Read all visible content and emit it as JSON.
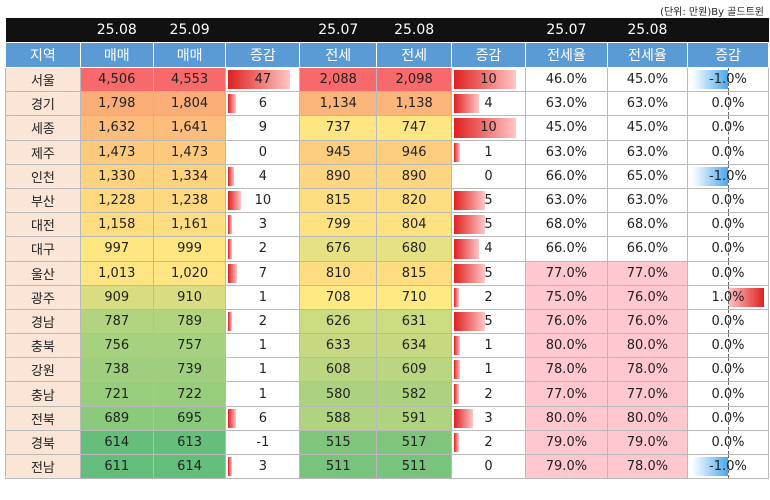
{
  "unit_note": "(단위: 만원)By 골드트윈",
  "periods": [
    "25.08",
    "25.09",
    "",
    "25.07",
    "25.08",
    "",
    "25.07",
    "25.08",
    ""
  ],
  "columns": [
    "지역",
    "매매",
    "매매",
    "증감",
    "전세",
    "전세",
    "증감",
    "전세율",
    "전세율",
    "증감"
  ],
  "rows": [
    {
      "region": "서울",
      "sale1": "4,506",
      "sale2": "4,553",
      "sale_chg": "47",
      "sale_bar": 1.0,
      "jeonse1": "2,088",
      "jeonse2": "2,098",
      "jeonse_chg": "10",
      "jeonse_bar": 1.0,
      "rate1": "46.0%",
      "rate2": "45.0%",
      "rate_chg": "-1.0%",
      "rate_dir": -1,
      "sale_color": "#f8696b",
      "jeonse_color": "#f8696b",
      "rate_pink": false
    },
    {
      "region": "경기",
      "sale1": "1,798",
      "sale2": "1,804",
      "sale_chg": "6",
      "sale_bar": 0.13,
      "jeonse1": "1,134",
      "jeonse2": "1,138",
      "jeonse_chg": "4",
      "jeonse_bar": 0.4,
      "rate1": "63.0%",
      "rate2": "63.0%",
      "rate_chg": "0.0%",
      "rate_dir": 0,
      "sale_color": "#fbad78",
      "jeonse_color": "#fbb47a",
      "rate_pink": false
    },
    {
      "region": "세종",
      "sale1": "1,632",
      "sale2": "1,641",
      "sale_chg": "9",
      "sale_bar": 0.0,
      "jeonse1": "737",
      "jeonse2": "747",
      "jeonse_chg": "10",
      "jeonse_bar": 1.0,
      "rate1": "45.0%",
      "rate2": "45.0%",
      "rate_chg": "0.0%",
      "rate_dir": 0,
      "sale_color": "#fcbc7b",
      "jeonse_color": "#fee683",
      "rate_pink": false
    },
    {
      "region": "제주",
      "sale1": "1,473",
      "sale2": "1,473",
      "sale_chg": "0",
      "sale_bar": 0.0,
      "jeonse1": "945",
      "jeonse2": "946",
      "jeonse_chg": "1",
      "jeonse_bar": 0.1,
      "rate1": "63.0%",
      "rate2": "63.0%",
      "rate_chg": "0.0%",
      "rate_dir": 0,
      "sale_color": "#fdc97d",
      "jeonse_color": "#fdcd7e",
      "rate_pink": false
    },
    {
      "region": "인천",
      "sale1": "1,330",
      "sale2": "1,334",
      "sale_chg": "4",
      "sale_bar": 0.09,
      "jeonse1": "890",
      "jeonse2": "890",
      "jeonse_chg": "0",
      "jeonse_bar": 0.0,
      "rate1": "66.0%",
      "rate2": "65.0%",
      "rate_chg": "-1.0%",
      "rate_dir": -1,
      "sale_color": "#fed380",
      "jeonse_color": "#fed580",
      "rate_pink": false
    },
    {
      "region": "부산",
      "sale1": "1,228",
      "sale2": "1,238",
      "sale_chg": "10",
      "sale_bar": 0.21,
      "jeonse1": "815",
      "jeonse2": "820",
      "jeonse_chg": "5",
      "jeonse_bar": 0.5,
      "rate1": "63.0%",
      "rate2": "63.0%",
      "rate_chg": "0.0%",
      "rate_dir": 0,
      "sale_color": "#fed980",
      "jeonse_color": "#fede81",
      "rate_pink": false
    },
    {
      "region": "대전",
      "sale1": "1,158",
      "sale2": "1,161",
      "sale_chg": "3",
      "sale_bar": 0.07,
      "jeonse1": "799",
      "jeonse2": "804",
      "jeonse_chg": "5",
      "jeonse_bar": 0.5,
      "rate1": "68.0%",
      "rate2": "68.0%",
      "rate_chg": "0.0%",
      "rate_dir": 0,
      "sale_color": "#fedd81",
      "jeonse_color": "#fee282",
      "rate_pink": false
    },
    {
      "region": "대구",
      "sale1": "997",
      "sale2": "999",
      "sale_chg": "2",
      "sale_bar": 0.05,
      "jeonse1": "676",
      "jeonse2": "680",
      "jeonse_chg": "4",
      "jeonse_bar": 0.4,
      "rate1": "66.0%",
      "rate2": "66.0%",
      "rate_chg": "0.0%",
      "rate_dir": 0,
      "sale_color": "#fee683",
      "jeonse_color": "#e6e182",
      "rate_pink": false
    },
    {
      "region": "울산",
      "sale1": "1,013",
      "sale2": "1,020",
      "sale_chg": "7",
      "sale_bar": 0.15,
      "jeonse1": "810",
      "jeonse2": "815",
      "jeonse_chg": "5",
      "jeonse_bar": 0.5,
      "rate1": "77.0%",
      "rate2": "77.0%",
      "rate_chg": "0.0%",
      "rate_dir": 0,
      "sale_color": "#fee482",
      "jeonse_color": "#fedc81",
      "rate_pink": true
    },
    {
      "region": "광주",
      "sale1": "909",
      "sale2": "910",
      "sale_chg": "1",
      "sale_bar": 0.0,
      "jeonse1": "708",
      "jeonse2": "710",
      "jeonse_chg": "2",
      "jeonse_bar": 0.0,
      "rate1": "75.0%",
      "rate2": "76.0%",
      "rate_chg": "1.0%",
      "rate_dir": 1,
      "sale_color": "#d8dd81",
      "jeonse_color": "#fee983",
      "rate_pink": true
    },
    {
      "region": "경남",
      "sale1": "787",
      "sale2": "789",
      "sale_chg": "2",
      "sale_bar": 0.05,
      "jeonse1": "626",
      "jeonse2": "631",
      "jeonse_chg": "5",
      "jeonse_bar": 0.5,
      "rate1": "76.0%",
      "rate2": "76.0%",
      "rate_chg": "0.0%",
      "rate_dir": 0,
      "sale_color": "#b2d47f",
      "jeonse_color": "#cbdb81",
      "rate_pink": true
    },
    {
      "region": "충북",
      "sale1": "756",
      "sale2": "757",
      "sale_chg": "1",
      "sale_bar": 0.0,
      "jeonse1": "633",
      "jeonse2": "634",
      "jeonse_chg": "1",
      "jeonse_bar": 0.1,
      "rate1": "80.0%",
      "rate2": "80.0%",
      "rate_chg": "0.0%",
      "rate_dir": 0,
      "sale_color": "#a6d17e",
      "jeonse_color": "#c6d980",
      "rate_pink": true
    },
    {
      "region": "강원",
      "sale1": "738",
      "sale2": "739",
      "sale_chg": "1",
      "sale_bar": 0.0,
      "jeonse1": "608",
      "jeonse2": "609",
      "jeonse_chg": "1",
      "jeonse_bar": 0.1,
      "rate1": "78.0%",
      "rate2": "78.0%",
      "rate_chg": "0.0%",
      "rate_dir": 0,
      "sale_color": "#9fcf7e",
      "jeonse_color": "#bbd680",
      "rate_pink": true
    },
    {
      "region": "충남",
      "sale1": "721",
      "sale2": "722",
      "sale_chg": "1",
      "sale_bar": 0.0,
      "jeonse1": "580",
      "jeonse2": "582",
      "jeonse_chg": "2",
      "jeonse_bar": 0.0,
      "rate1": "77.0%",
      "rate2": "77.0%",
      "rate_chg": "0.0%",
      "rate_dir": 0,
      "sale_color": "#98cd7e",
      "jeonse_color": "#acd27f",
      "rate_pink": true
    },
    {
      "region": "전북",
      "sale1": "689",
      "sale2": "695",
      "sale_chg": "6",
      "sale_bar": 0.13,
      "jeonse1": "588",
      "jeonse2": "591",
      "jeonse_chg": "3",
      "jeonse_bar": 0.3,
      "rate1": "80.0%",
      "rate2": "80.0%",
      "rate_chg": "0.0%",
      "rate_dir": 0,
      "sale_color": "#8aca7d",
      "jeonse_color": "#afd37f",
      "rate_pink": true
    },
    {
      "region": "경북",
      "sale1": "614",
      "sale2": "613",
      "sale_chg": "-1",
      "sale_bar": 0.0,
      "jeonse1": "515",
      "jeonse2": "517",
      "jeonse_chg": "2",
      "jeonse_bar": 0.0,
      "rate1": "79.0%",
      "rate2": "79.0%",
      "rate_chg": "0.0%",
      "rate_dir": 0,
      "sale_color": "#65bf7b",
      "jeonse_color": "#7fc67c",
      "rate_pink": true
    },
    {
      "region": "전남",
      "sale1": "611",
      "sale2": "614",
      "sale_chg": "3",
      "sale_bar": 0.07,
      "jeonse1": "511",
      "jeonse2": "511",
      "jeonse_chg": "0",
      "jeonse_bar": 0.0,
      "rate1": "79.0%",
      "rate2": "78.0%",
      "rate_chg": "-1.0%",
      "rate_dir": -1,
      "sale_color": "#63be7b",
      "jeonse_color": "#78c47c",
      "rate_pink": true
    }
  ]
}
